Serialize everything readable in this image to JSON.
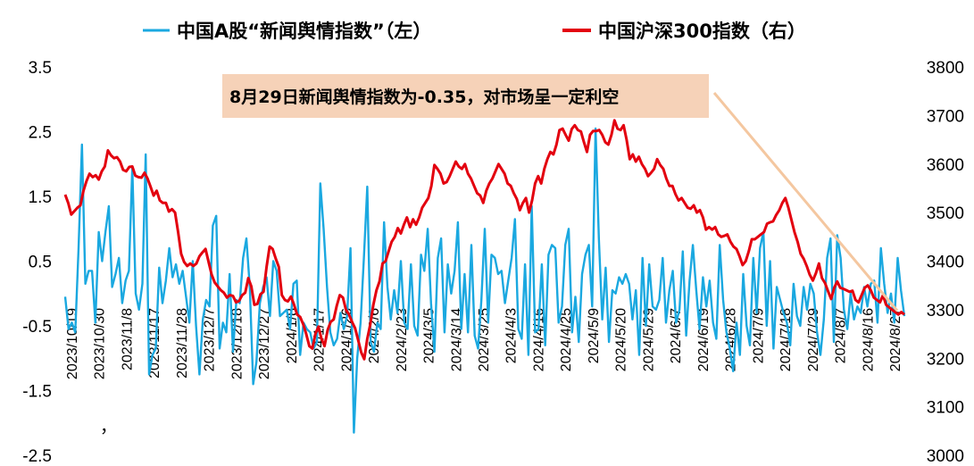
{
  "legend": {
    "series_a_label": "中国A股“新闻舆情指数”（左）",
    "series_b_label": "中国沪深300指数（右）"
  },
  "annotation": {
    "text": "8月29日新闻舆情指数为-0.35，对市场呈一定利空"
  },
  "stray_mark": "，",
  "colors": {
    "sentiment": "#1aa8e0",
    "csi300": "#e3000f",
    "annotation_bg": "#f6d2b8",
    "arrow": "#f4c7a0"
  },
  "chart_data": {
    "type": "line",
    "title": "",
    "x_tick_labels": [
      "2023/10/19",
      "2023/10/30",
      "2023/11/8",
      "2023/11/17",
      "2023/11/28",
      "2023/12/7",
      "2023/12/18",
      "2023/12/27",
      "2024/1/8",
      "2024/1/17",
      "2024/1/26",
      "2024/2/6",
      "2024/2/23",
      "2024/3/5",
      "2024/3/14",
      "2024/3/25",
      "2024/4/3",
      "2024/4/16",
      "2024/4/25",
      "2024/5/9",
      "2024/5/20",
      "2024/5/29",
      "2024/6/7",
      "2024/6/19",
      "2024/6/28",
      "2024/7/9",
      "2024/7/18",
      "2024/7/29",
      "2024/8/7",
      "2024/8/16",
      "2024/8/27"
    ],
    "y_left_ticks": [
      "3.5",
      "2.5",
      "1.5",
      "0.5",
      "-0.5",
      "-1.5",
      "-2.5"
    ],
    "y_right_ticks": [
      "3800",
      "3700",
      "3600",
      "3500",
      "3400",
      "3300",
      "3200",
      "3100",
      "3000"
    ],
    "y_left_range": [
      -2.5,
      3.5
    ],
    "y_right_range": [
      3000,
      3800
    ],
    "legend_position": "top",
    "grid": false,
    "series": [
      {
        "name": "中国A股“新闻舆情指数”（左）",
        "axis": "left",
        "color": "#1aa8e0",
        "values": [
          -0.05,
          -0.55,
          -0.45,
          -0.6,
          0.7,
          2.3,
          0.15,
          0.35,
          0.35,
          -0.45,
          0.95,
          0.5,
          0.95,
          1.35,
          0.1,
          0.3,
          0.55,
          -0.15,
          0.2,
          0.35,
          1.95,
          0.0,
          -0.25,
          0.15,
          2.15,
          -1.25,
          -0.95,
          -0.85,
          0.4,
          -0.15,
          0.2,
          0.7,
          0.25,
          0.45,
          0.15,
          0.35,
          -0.05,
          -0.45,
          0.5,
          -0.5,
          -1.25,
          -0.4,
          -0.1,
          -0.2,
          1.05,
          1.2,
          -0.85,
          -0.45,
          -0.6,
          0.3,
          -0.9,
          -0.1,
          -0.15,
          0.55,
          0.85,
          0.1,
          -1.4,
          -1.05,
          -0.15,
          0.1,
          0.25,
          -0.35,
          0.5,
          0.35,
          -0.35,
          -0.3,
          -0.25,
          -0.55,
          0.15,
          0.2,
          -0.95,
          -0.45,
          -0.55,
          -0.6,
          -0.85,
          -0.75,
          1.7,
          1.0,
          0.1,
          -0.6,
          -0.8,
          -0.7,
          -0.3,
          -0.55,
          -0.35,
          0.7,
          -2.15,
          -1.0,
          -0.45,
          0.55,
          1.65,
          -0.75,
          -0.9,
          -0.45,
          -0.55,
          1.1,
          0.1,
          -0.4,
          0.05,
          -0.3,
          0.5,
          -0.45,
          -0.55,
          0.45,
          -0.5,
          -0.65,
          0.6,
          0.35,
          1.0,
          -0.15,
          -0.9,
          0.55,
          0.85,
          -0.6,
          0.45,
          0.0,
          0.35,
          1.1,
          -0.55,
          0.3,
          -0.6,
          0.75,
          -0.65,
          -0.85,
          -0.1,
          1.0,
          -0.45,
          0.6,
          0.55,
          0.3,
          0.35,
          -0.15,
          0.2,
          0.55,
          1.15,
          -0.55,
          -0.7,
          0.45,
          -0.95,
          1.35,
          -0.6,
          -0.55,
          0.45,
          -0.8,
          0.6,
          0.75,
          0.7,
          -0.45,
          -0.2,
          0.75,
          1.0,
          -0.6,
          -0.05,
          -0.75,
          0.3,
          0.6,
          0.75,
          -0.2,
          2.55,
          0.85,
          -0.4,
          0.4,
          -0.75,
          0.05,
          0.0,
          0.25,
          0.15,
          0.3,
          0.15,
          -0.4,
          0.05,
          -0.95,
          0.55,
          -0.5,
          0.45,
          -0.2,
          -0.25,
          -0.1,
          0.55,
          -0.45,
          0.05,
          0.35,
          -0.45,
          -0.25,
          0.65,
          -0.65,
          0.2,
          0.75,
          0.05,
          -0.55,
          0.25,
          -0.2,
          0.2,
          -0.45,
          -0.7,
          0.75,
          -0.1,
          -0.6,
          -0.85,
          -1.2,
          -0.45,
          -0.95,
          0.3,
          -0.5,
          -0.8,
          0.55,
          -0.3,
          0.7,
          0.95,
          -0.5,
          0.5,
          -0.85,
          0.1,
          -0.1,
          -0.3,
          -0.45,
          -0.8,
          0.15,
          -0.35,
          -0.5,
          0.1,
          -0.25,
          0.15,
          0.0,
          -0.6,
          -0.95,
          -0.4,
          0.55,
          0.85,
          -0.75,
          0.9,
          0.55,
          -0.25,
          -0.55,
          0.0,
          -0.4,
          -0.2,
          -0.3,
          0.1,
          -0.2,
          0.15,
          0.2,
          -0.45,
          0.7,
          0.15,
          -0.3,
          0.0,
          -0.45,
          0.55,
          0.05,
          -0.35
        ]
      },
      {
        "name": "中国沪深300指数（右）",
        "axis": "right",
        "color": "#e3000f",
        "values": [
          3537,
          3520,
          3496,
          3503,
          3510,
          3515,
          3545,
          3565,
          3580,
          3573,
          3577,
          3568,
          3585,
          3595,
          3628,
          3618,
          3612,
          3614,
          3605,
          3588,
          3585,
          3594,
          3595,
          3576,
          3573,
          3572,
          3582,
          3570,
          3553,
          3535,
          3545,
          3525,
          3520,
          3520,
          3502,
          3507,
          3500,
          3460,
          3415,
          3398,
          3390,
          3395,
          3390,
          3395,
          3410,
          3418,
          3425,
          3398,
          3372,
          3356,
          3348,
          3340,
          3335,
          3325,
          3330,
          3328,
          3315,
          3318,
          3330,
          3335,
          3365,
          3348,
          3310,
          3312,
          3332,
          3337,
          3388,
          3430,
          3425,
          3405,
          3388,
          3330,
          3320,
          3317,
          3327,
          3310,
          3290,
          3285,
          3270,
          3250,
          3225,
          3220,
          3250,
          3265,
          3240,
          3225,
          3258,
          3275,
          3280,
          3308,
          3330,
          3325,
          3300,
          3290,
          3275,
          3262,
          3238,
          3212,
          3198,
          3240,
          3270,
          3310,
          3340,
          3358,
          3395,
          3400,
          3420,
          3440,
          3450,
          3468,
          3457,
          3475,
          3490,
          3470,
          3486,
          3475,
          3490,
          3510,
          3520,
          3530,
          3555,
          3598,
          3590,
          3580,
          3560,
          3563,
          3575,
          3590,
          3605,
          3595,
          3590,
          3600,
          3580,
          3570,
          3555,
          3540,
          3535,
          3520,
          3545,
          3560,
          3570,
          3585,
          3600,
          3590,
          3580,
          3560,
          3555,
          3540,
          3528,
          3505,
          3520,
          3530,
          3500,
          3525,
          3560,
          3575,
          3560,
          3590,
          3610,
          3625,
          3620,
          3640,
          3670,
          3673,
          3660,
          3648,
          3672,
          3680,
          3670,
          3667,
          3645,
          3625,
          3660,
          3668,
          3668,
          3670,
          3660,
          3645,
          3640,
          3660,
          3690,
          3673,
          3670,
          3680,
          3650,
          3610,
          3620,
          3605,
          3615,
          3600,
          3590,
          3575,
          3582,
          3590,
          3610,
          3598,
          3590,
          3570,
          3555,
          3555,
          3538,
          3525,
          3530,
          3520,
          3510,
          3508,
          3515,
          3500,
          3505,
          3490,
          3465,
          3470,
          3465,
          3470,
          3455,
          3450,
          3452,
          3455,
          3440,
          3430,
          3425,
          3410,
          3392,
          3400,
          3420,
          3445,
          3445,
          3450,
          3455,
          3460,
          3477,
          3480,
          3482,
          3495,
          3505,
          3520,
          3530,
          3510,
          3485,
          3460,
          3440,
          3415,
          3405,
          3390,
          3372,
          3360,
          3375,
          3395,
          3365,
          3355,
          3338,
          3322,
          3345,
          3358,
          3345,
          3343,
          3340,
          3337,
          3339,
          3320,
          3315,
          3330,
          3345,
          3350,
          3340,
          3325,
          3320,
          3315,
          3330,
          3310,
          3305,
          3300,
          3295,
          3290,
          3295,
          3290
        ]
      }
    ]
  }
}
